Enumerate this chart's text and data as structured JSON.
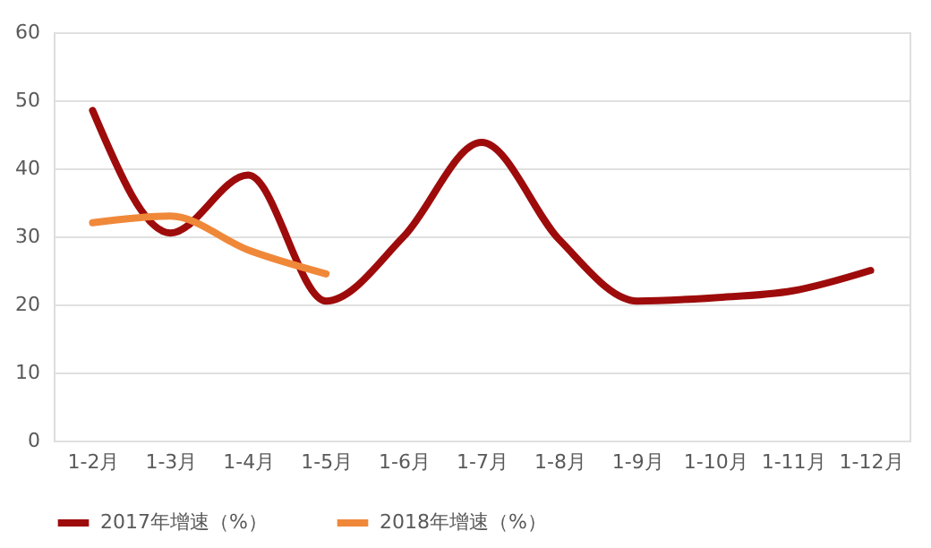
{
  "chart_data": {
    "type": "line",
    "categories": [
      "1-2月",
      "1-3月",
      "1-4月",
      "1-5月",
      "1-6月",
      "1-7月",
      "1-8月",
      "1-9月",
      "1-10月",
      "1-11月",
      "1-12月"
    ],
    "series": [
      {
        "name": "2017年增速（%）",
        "color": "#9e0b0b",
        "values": [
          48.5,
          30.5,
          39,
          20.5,
          30,
          43.8,
          29.5,
          20.5,
          21,
          22,
          25
        ]
      },
      {
        "name": "2018年增速（%）",
        "color": "#f0883a",
        "values": [
          32,
          33,
          28,
          24.5,
          null,
          null,
          null,
          null,
          null,
          null,
          null
        ]
      }
    ],
    "ylim": [
      0,
      60
    ],
    "yticks": [
      0,
      10,
      20,
      30,
      40,
      50,
      60
    ],
    "grid": "y",
    "legend": "bottom",
    "marker": "none",
    "line_style": "solid"
  }
}
